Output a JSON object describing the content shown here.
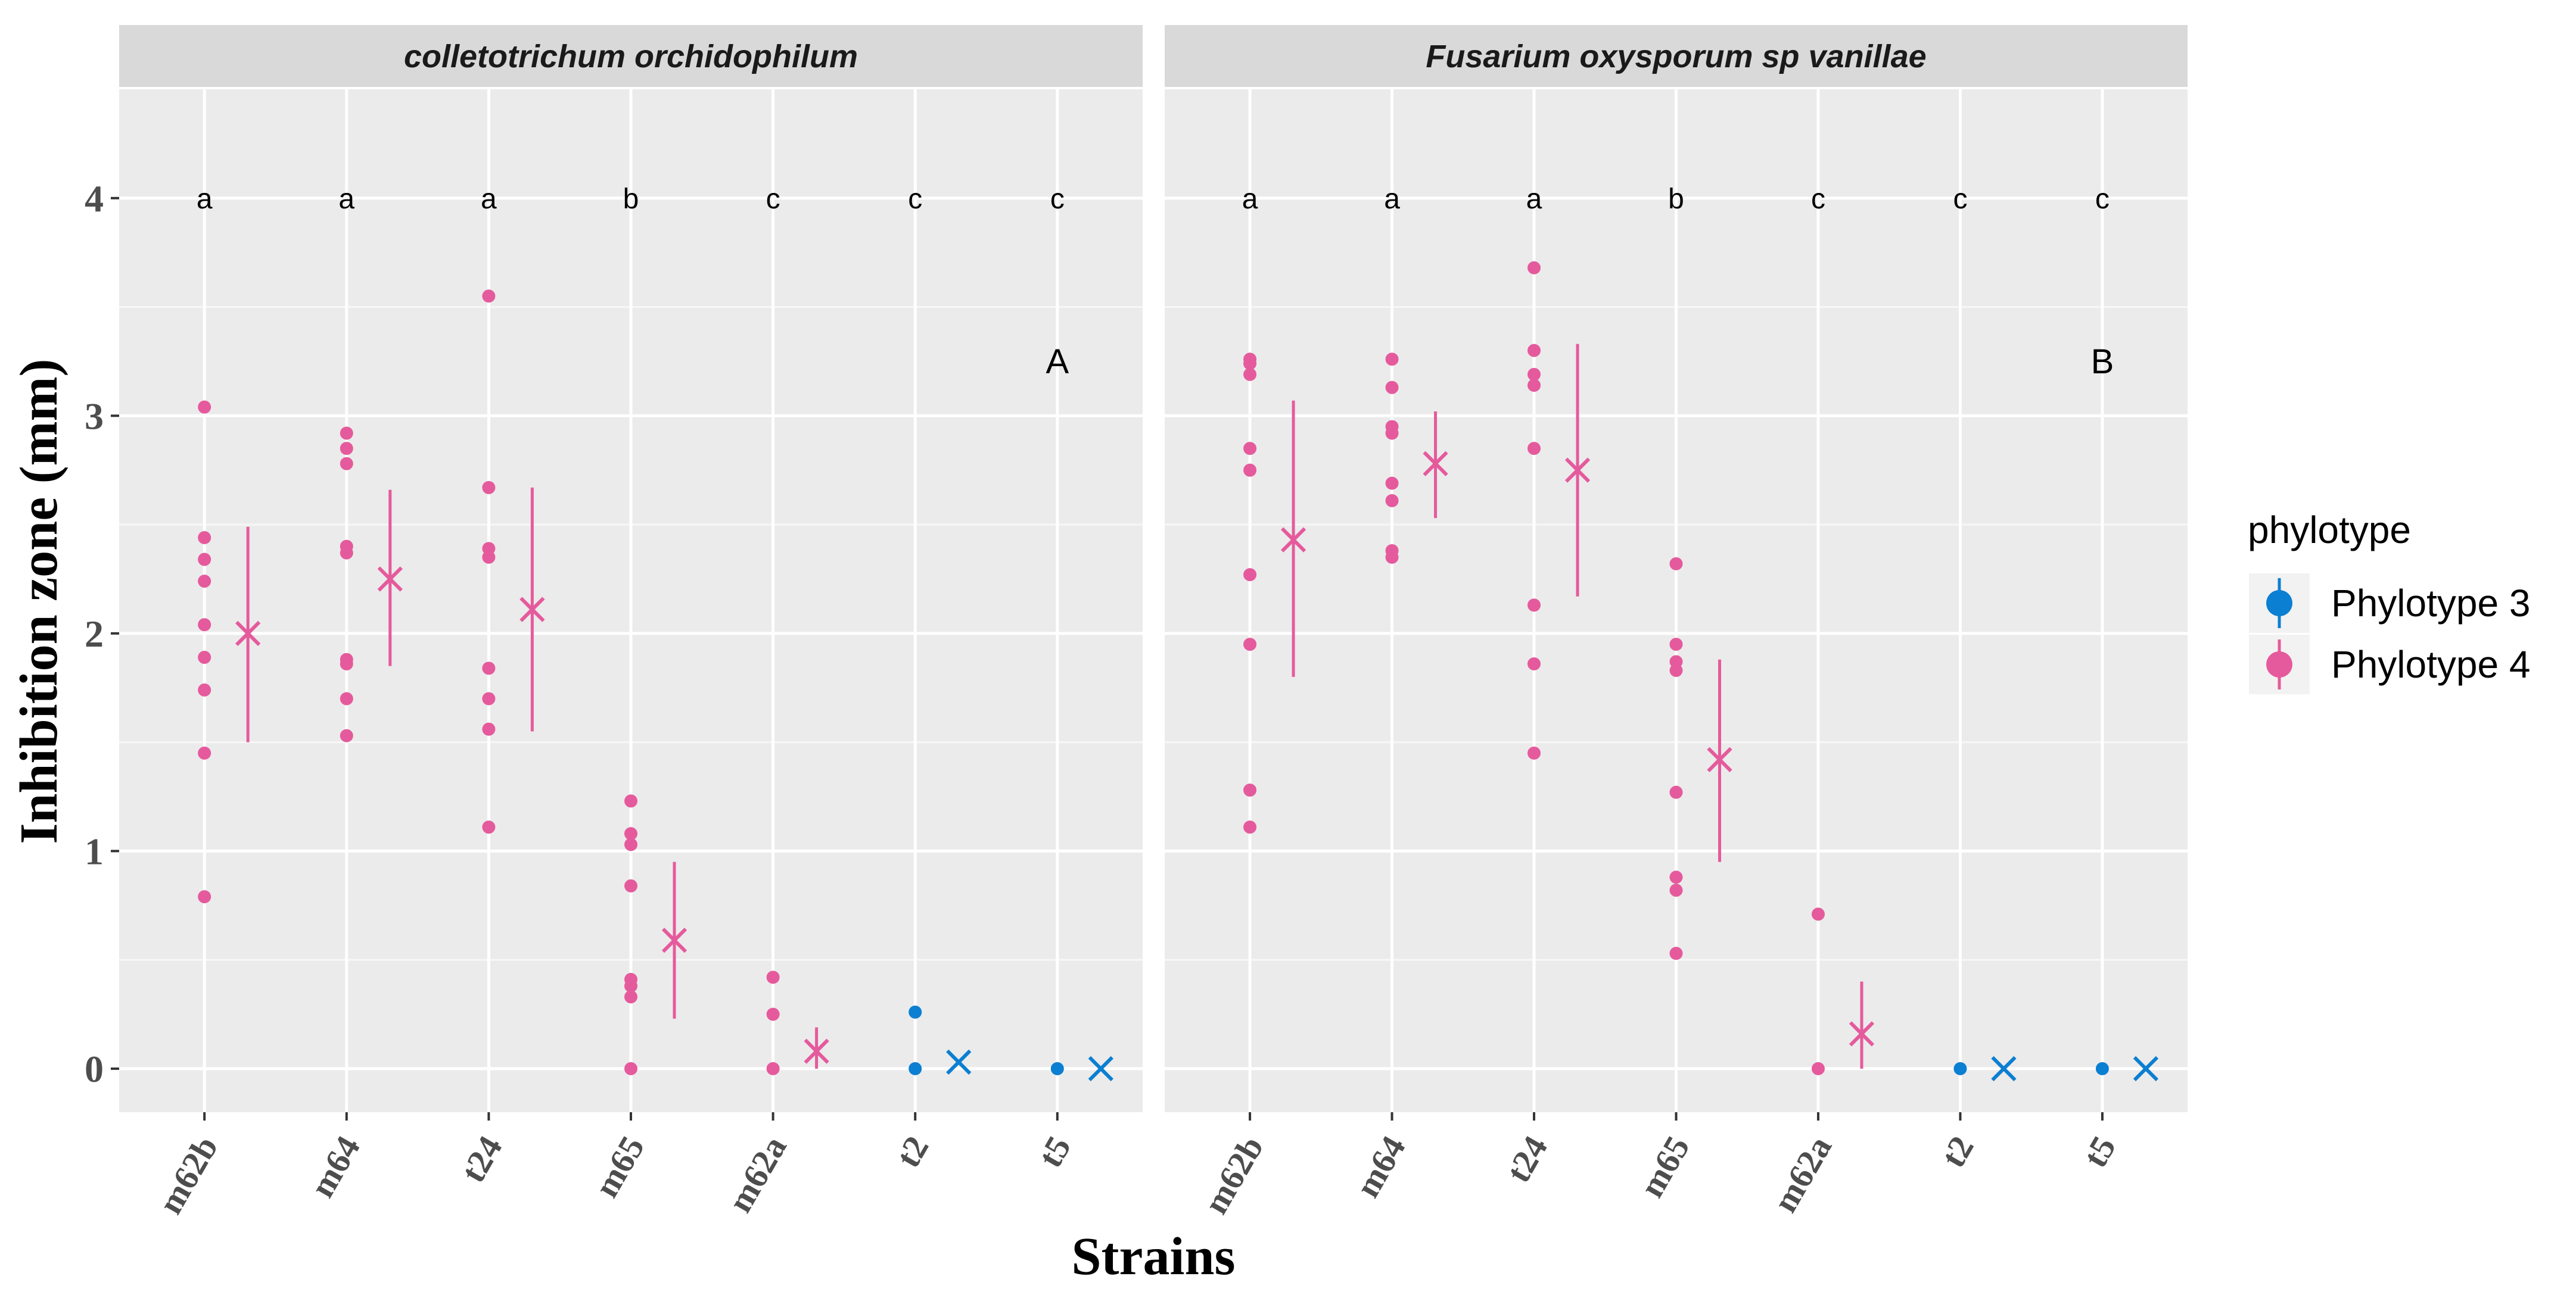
{
  "chart_data": {
    "type": "scatter",
    "ylabel": "Inhibition zone (mm)",
    "xlabel": "Strains",
    "categories": [
      "m62b",
      "m64",
      "t24",
      "m65",
      "m62a",
      "t2",
      "t5"
    ],
    "yticks": [
      0,
      1,
      2,
      3,
      4
    ],
    "ylim": [
      -0.2,
      4.5
    ],
    "grid": true,
    "legend": {
      "title": "phylotype",
      "position": "right",
      "entries": [
        {
          "label": "Phylotype 3",
          "color": "#0B7FD1"
        },
        {
          "label": "Phylotype 4",
          "color": "#E55A9C"
        }
      ]
    },
    "phylotype_by_strain": {
      "m62b": "Phylotype 4",
      "m64": "Phylotype 4",
      "t24": "Phylotype 4",
      "m65": "Phylotype 4",
      "m62a": "Phylotype 4",
      "t2": "Phylotype 3",
      "t5": "Phylotype 3"
    },
    "panels": [
      {
        "strip_title": "colletotrichum orchidophilum",
        "tag": "A",
        "letters": [
          "a",
          "a",
          "a",
          "b",
          "c",
          "c",
          "c"
        ],
        "points": {
          "m62b": [
            3.04,
            2.44,
            2.34,
            2.24,
            2.04,
            1.89,
            1.74,
            1.45,
            0.79
          ],
          "m64": [
            2.92,
            2.85,
            2.78,
            2.4,
            2.37,
            1.88,
            1.86,
            1.7,
            1.53
          ],
          "t24": [
            3.55,
            2.67,
            2.39,
            2.35,
            1.84,
            1.7,
            1.56,
            1.11
          ],
          "m65": [
            1.23,
            1.08,
            1.03,
            0.84,
            0.41,
            0.38,
            0.33,
            0.0
          ],
          "m62a": [
            0.42,
            0.25,
            0.0
          ],
          "t2": [
            0.26,
            0.0
          ],
          "t5": [
            0.0
          ]
        },
        "summary": [
          {
            "strain": "m62b",
            "mean": 2.0,
            "low": 1.5,
            "high": 2.49
          },
          {
            "strain": "m64",
            "mean": 2.25,
            "low": 1.85,
            "high": 2.66
          },
          {
            "strain": "t24",
            "mean": 2.11,
            "low": 1.55,
            "high": 2.67
          },
          {
            "strain": "m65",
            "mean": 0.59,
            "low": 0.23,
            "high": 0.95
          },
          {
            "strain": "m62a",
            "mean": 0.08,
            "low": 0.0,
            "high": 0.19
          },
          {
            "strain": "t2",
            "mean": 0.03,
            "low": 0.03,
            "high": 0.03
          },
          {
            "strain": "t5",
            "mean": 0.0,
            "low": 0.0,
            "high": 0.0
          }
        ]
      },
      {
        "strip_title": "Fusarium oxysporum sp vanillae",
        "tag": "B",
        "letters": [
          "a",
          "a",
          "a",
          "b",
          "c",
          "c",
          "c"
        ],
        "points": {
          "m62b": [
            3.26,
            3.24,
            3.19,
            2.85,
            2.75,
            2.27,
            1.95,
            1.28,
            1.11
          ],
          "m64": [
            3.26,
            3.13,
            2.95,
            2.92,
            2.69,
            2.61,
            2.38,
            2.35
          ],
          "t24": [
            3.68,
            3.3,
            3.19,
            3.14,
            2.85,
            2.13,
            1.86,
            1.45
          ],
          "m65": [
            2.32,
            1.95,
            1.87,
            1.83,
            1.27,
            0.88,
            0.82,
            0.53
          ],
          "m62a": [
            0.71,
            0.0
          ],
          "t2": [
            0.0
          ],
          "t5": [
            0.0
          ]
        },
        "summary": [
          {
            "strain": "m62b",
            "mean": 2.43,
            "low": 1.8,
            "high": 3.07
          },
          {
            "strain": "m64",
            "mean": 2.78,
            "low": 2.53,
            "high": 3.02
          },
          {
            "strain": "t24",
            "mean": 2.75,
            "low": 2.17,
            "high": 3.33
          },
          {
            "strain": "m65",
            "mean": 1.42,
            "low": 0.95,
            "high": 1.88
          },
          {
            "strain": "m62a",
            "mean": 0.16,
            "low": 0.0,
            "high": 0.4
          },
          {
            "strain": "t2",
            "mean": 0.0,
            "low": 0.0,
            "high": 0.0
          },
          {
            "strain": "t5",
            "mean": 0.0,
            "low": 0.0,
            "high": 0.0
          }
        ]
      }
    ]
  }
}
